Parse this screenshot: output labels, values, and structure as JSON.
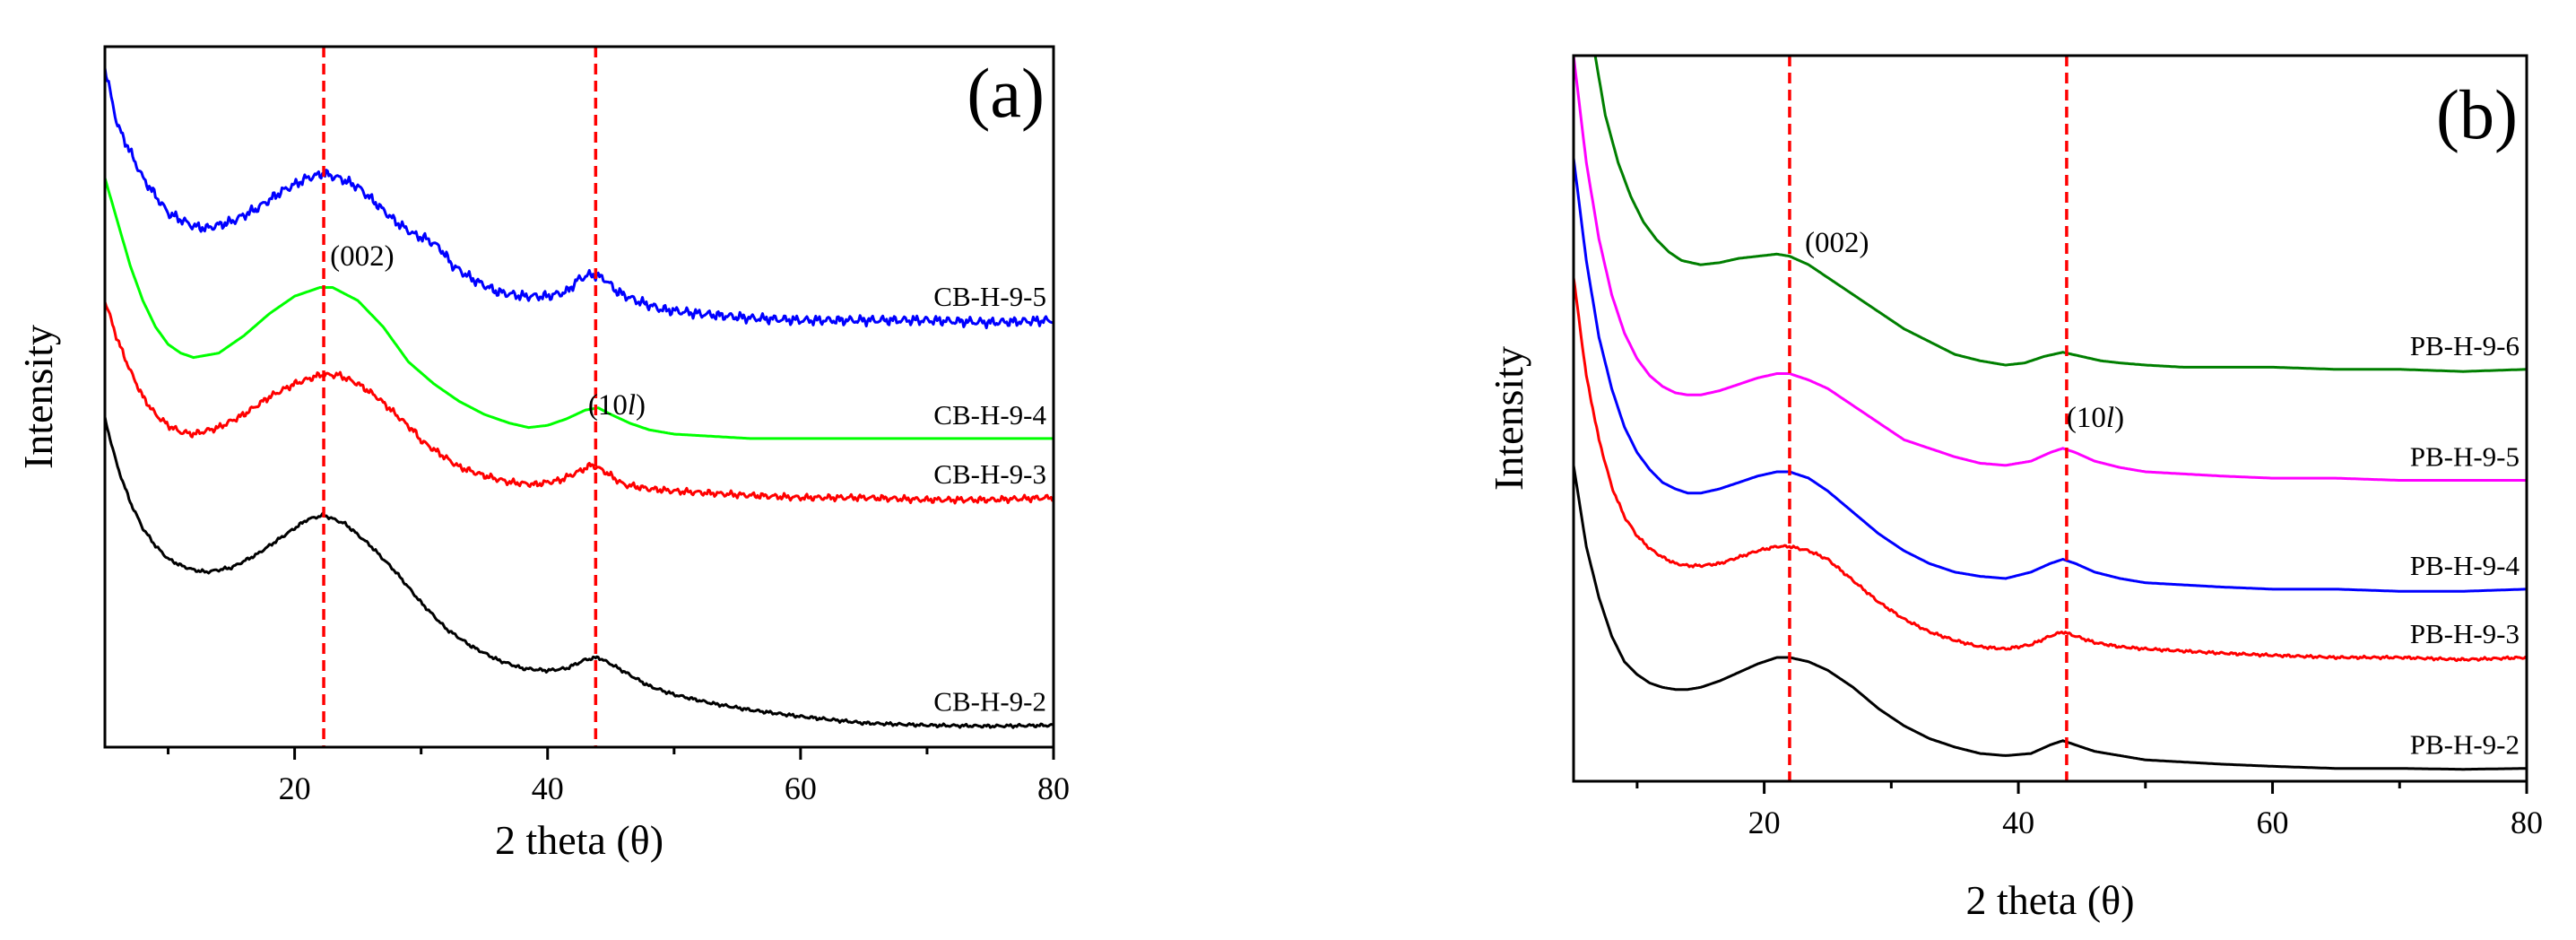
{
  "figure": {
    "panels": [
      {
        "id": "a",
        "panel_label": "(a)",
        "reference_lines": [
          22.3,
          43.8
        ],
        "peak_labels": [
          {
            "text": "(002)",
            "x": 22.8,
            "y": 1.1
          },
          {
            "text": "(10",
            "italic": "l",
            "close": ")",
            "x": 43.2,
            "y": 0.76
          }
        ]
      },
      {
        "id": "b",
        "panel_label": "(b)",
        "reference_lines": [
          22.0,
          43.8
        ],
        "peak_labels": [
          {
            "text": "(002)",
            "x": 23.2,
            "y": 1.24
          },
          {
            "text": "(10",
            "italic": "l",
            "close": ")",
            "x": 43.8,
            "y": 0.83
          }
        ]
      }
    ]
  },
  "chart_data": [
    {
      "type": "line",
      "panel": "a",
      "title": "",
      "xlabel": "2 theta (θ)",
      "ylabel": "Intensity",
      "xlim": [
        5,
        80
      ],
      "ylim": [
        0,
        1.6
      ],
      "x_ticks": [
        20,
        40,
        60,
        80
      ],
      "x_minor_ticks": [
        10,
        30,
        50,
        70
      ],
      "legend": "labels-at-right-end",
      "color_scheme": {
        "CB-H-9-5": "#0000ff",
        "CB-H-9-4": "#00ff00",
        "CB-H-9-3": "#ff0000",
        "CB-H-9-2": "#000000"
      },
      "series": [
        {
          "name": "CB-H-9-5",
          "color": "#0000ff",
          "noise": 0.012,
          "x": [
            5,
            6,
            8,
            10,
            12,
            13,
            15,
            17,
            19,
            21,
            22.3,
            23.5,
            25,
            26.5,
            28,
            29.5,
            30.5,
            31.5,
            32.5,
            34,
            36,
            38,
            40,
            41.5,
            42.5,
            43.5,
            44.5,
            45.5,
            47,
            49,
            52,
            56,
            60,
            65,
            70,
            75,
            80
          ],
          "y": [
            1.55,
            1.42,
            1.3,
            1.22,
            1.19,
            1.185,
            1.2,
            1.23,
            1.27,
            1.3,
            1.31,
            1.3,
            1.28,
            1.24,
            1.2,
            1.17,
            1.16,
            1.14,
            1.1,
            1.07,
            1.04,
            1.03,
            1.03,
            1.04,
            1.07,
            1.08,
            1.07,
            1.04,
            1.02,
            1.0,
            0.99,
            0.98,
            0.975,
            0.975,
            0.975,
            0.97,
            0.975
          ]
        },
        {
          "name": "CB-H-9-4",
          "color": "#00ff00",
          "noise": 0.0,
          "x": [
            5,
            6,
            7,
            8,
            9,
            10,
            11,
            12,
            14,
            16,
            18,
            20,
            22,
            23,
            25,
            27,
            29,
            31,
            33,
            35,
            37,
            38.5,
            40,
            41.5,
            43,
            44,
            45,
            46.5,
            48,
            50,
            53,
            56,
            60,
            65,
            70,
            75,
            80
          ],
          "y": [
            1.3,
            1.2,
            1.1,
            1.02,
            0.96,
            0.92,
            0.9,
            0.89,
            0.9,
            0.94,
            0.99,
            1.03,
            1.05,
            1.05,
            1.02,
            0.96,
            0.88,
            0.83,
            0.79,
            0.76,
            0.74,
            0.73,
            0.735,
            0.75,
            0.77,
            0.775,
            0.76,
            0.74,
            0.725,
            0.715,
            0.71,
            0.705,
            0.705,
            0.705,
            0.705,
            0.705,
            0.705
          ]
        },
        {
          "name": "CB-H-9-3",
          "color": "#ff0000",
          "noise": 0.008,
          "x": [
            5,
            6,
            7,
            8,
            9,
            10,
            11,
            12,
            14,
            16,
            18,
            20,
            22,
            23.5,
            25,
            26.5,
            28,
            29.5,
            30,
            31,
            33,
            35,
            37,
            39,
            41,
            42.5,
            43.5,
            44.5,
            46,
            48,
            50,
            53,
            56,
            60,
            65,
            70,
            75,
            80
          ],
          "y": [
            1.02,
            0.93,
            0.86,
            0.8,
            0.76,
            0.735,
            0.72,
            0.715,
            0.73,
            0.76,
            0.8,
            0.83,
            0.85,
            0.85,
            0.83,
            0.8,
            0.76,
            0.72,
            0.7,
            0.68,
            0.64,
            0.62,
            0.605,
            0.6,
            0.61,
            0.63,
            0.645,
            0.63,
            0.6,
            0.59,
            0.585,
            0.58,
            0.575,
            0.57,
            0.57,
            0.565,
            0.565,
            0.57
          ]
        },
        {
          "name": "CB-H-9-2",
          "color": "#000000",
          "noise": 0.004,
          "x": [
            5,
            6,
            7,
            8,
            9,
            10,
            11,
            12,
            13,
            15,
            17,
            19,
            21,
            22.3,
            24,
            26,
            28,
            30,
            32,
            34,
            36,
            38,
            40,
            41.5,
            43,
            44,
            45,
            46.5,
            48,
            50,
            53,
            56,
            60,
            65,
            70,
            75,
            80
          ],
          "y": [
            0.75,
            0.64,
            0.56,
            0.5,
            0.46,
            0.43,
            0.415,
            0.405,
            0.4,
            0.41,
            0.44,
            0.48,
            0.52,
            0.53,
            0.51,
            0.46,
            0.4,
            0.33,
            0.27,
            0.23,
            0.2,
            0.18,
            0.175,
            0.18,
            0.2,
            0.205,
            0.19,
            0.165,
            0.14,
            0.12,
            0.1,
            0.085,
            0.07,
            0.055,
            0.05,
            0.048,
            0.05
          ]
        }
      ]
    },
    {
      "type": "line",
      "panel": "b",
      "title": "",
      "xlabel": "2 theta (θ)",
      "ylabel": "Intensity",
      "xlim": [
        5,
        80
      ],
      "ylim": [
        0,
        1.7
      ],
      "x_ticks": [
        20,
        40,
        60,
        80
      ],
      "x_minor_ticks": [
        10,
        30,
        50,
        70
      ],
      "legend": "labels-at-right-end",
      "color_scheme": {
        "PB-H-9-6": "#007f00",
        "PB-H-9-5": "#ff00ff",
        "PB-H-9-4": "#0000ff",
        "PB-H-9-3": "#ff0000",
        "PB-H-9-2": "#000000"
      },
      "series": [
        {
          "name": "PB-H-9-6",
          "color": "#007f00",
          "noise": 0.0,
          "x": [
            6.7,
            7.5,
            8.5,
            9.5,
            10.5,
            11.5,
            12.5,
            13.5,
            15,
            16.5,
            18,
            19.5,
            21,
            22,
            23.5,
            25,
            27,
            29,
            31,
            33,
            35,
            37,
            39,
            40.5,
            42,
            43.5,
            45,
            46.5,
            48,
            50,
            53,
            56,
            60,
            65,
            70,
            75,
            80
          ],
          "y": [
            1.7,
            1.56,
            1.45,
            1.37,
            1.31,
            1.27,
            1.24,
            1.22,
            1.21,
            1.215,
            1.225,
            1.23,
            1.235,
            1.23,
            1.21,
            1.18,
            1.14,
            1.1,
            1.06,
            1.03,
            1.0,
            0.985,
            0.975,
            0.98,
            0.995,
            1.005,
            0.995,
            0.985,
            0.98,
            0.975,
            0.97,
            0.97,
            0.97,
            0.965,
            0.965,
            0.96,
            0.965
          ]
        },
        {
          "name": "PB-H-9-5",
          "color": "#ff00ff",
          "noise": 0.0,
          "x": [
            5,
            6,
            7,
            8,
            9,
            10,
            11,
            12,
            13,
            14,
            15,
            16.5,
            18,
            19.5,
            21,
            22,
            23.5,
            25,
            27,
            29,
            31,
            33,
            35,
            37,
            39,
            41,
            42.5,
            43.5,
            44.5,
            46,
            48,
            50,
            53,
            56,
            60,
            65,
            70,
            75,
            80
          ],
          "y": [
            1.7,
            1.45,
            1.27,
            1.14,
            1.05,
            0.99,
            0.95,
            0.925,
            0.91,
            0.905,
            0.905,
            0.915,
            0.93,
            0.945,
            0.955,
            0.955,
            0.94,
            0.92,
            0.88,
            0.84,
            0.8,
            0.78,
            0.76,
            0.745,
            0.74,
            0.75,
            0.77,
            0.78,
            0.77,
            0.75,
            0.735,
            0.725,
            0.72,
            0.715,
            0.71,
            0.71,
            0.705,
            0.705,
            0.705
          ]
        },
        {
          "name": "PB-H-9-4",
          "color": "#0000ff",
          "noise": 0.0,
          "x": [
            5,
            6,
            7,
            8,
            9,
            10,
            11,
            12,
            13,
            14,
            15,
            16.5,
            18,
            19.5,
            21,
            22,
            23.5,
            25,
            27,
            29,
            31,
            33,
            35,
            37,
            39,
            41,
            42.5,
            43.5,
            44.5,
            46,
            48,
            50,
            53,
            56,
            60,
            65,
            70,
            75,
            80
          ],
          "y": [
            1.46,
            1.22,
            1.04,
            0.92,
            0.83,
            0.77,
            0.73,
            0.7,
            0.685,
            0.675,
            0.675,
            0.685,
            0.7,
            0.715,
            0.725,
            0.725,
            0.71,
            0.68,
            0.63,
            0.58,
            0.54,
            0.51,
            0.49,
            0.48,
            0.475,
            0.49,
            0.51,
            0.52,
            0.51,
            0.49,
            0.475,
            0.465,
            0.46,
            0.455,
            0.45,
            0.45,
            0.445,
            0.445,
            0.45
          ]
        },
        {
          "name": "PB-H-9-3",
          "color": "#ff0000",
          "noise": 0.0035,
          "x": [
            5,
            6,
            7,
            8,
            9,
            10,
            11,
            12,
            13,
            14,
            15,
            16.5,
            18,
            19.5,
            21,
            22,
            23.5,
            25,
            27,
            29,
            31,
            33,
            35,
            37,
            39,
            41,
            42.5,
            43.5,
            44.5,
            46,
            48,
            50,
            53,
            56,
            60,
            65,
            70,
            75,
            80
          ],
          "y": [
            1.18,
            0.95,
            0.8,
            0.69,
            0.62,
            0.575,
            0.545,
            0.525,
            0.51,
            0.505,
            0.505,
            0.51,
            0.525,
            0.54,
            0.55,
            0.55,
            0.54,
            0.52,
            0.47,
            0.42,
            0.38,
            0.35,
            0.33,
            0.315,
            0.31,
            0.32,
            0.34,
            0.35,
            0.34,
            0.325,
            0.315,
            0.31,
            0.305,
            0.3,
            0.295,
            0.29,
            0.29,
            0.285,
            0.29
          ]
        },
        {
          "name": "PB-H-9-2",
          "color": "#000000",
          "noise": 0.0,
          "x": [
            5,
            6,
            7,
            8,
            9,
            10,
            11,
            12,
            13,
            14,
            15,
            16.5,
            18,
            19.5,
            21,
            22,
            23.5,
            25,
            27,
            29,
            31,
            33,
            35,
            37,
            39,
            41,
            42.5,
            43.5,
            44.5,
            46,
            48,
            50,
            53,
            56,
            60,
            65,
            70,
            75,
            80
          ],
          "y": [
            0.74,
            0.55,
            0.43,
            0.34,
            0.28,
            0.25,
            0.23,
            0.22,
            0.215,
            0.215,
            0.22,
            0.235,
            0.255,
            0.275,
            0.29,
            0.29,
            0.28,
            0.26,
            0.22,
            0.17,
            0.13,
            0.1,
            0.08,
            0.065,
            0.06,
            0.065,
            0.085,
            0.095,
            0.085,
            0.07,
            0.06,
            0.05,
            0.045,
            0.04,
            0.035,
            0.03,
            0.03,
            0.028,
            0.03
          ]
        }
      ]
    }
  ]
}
